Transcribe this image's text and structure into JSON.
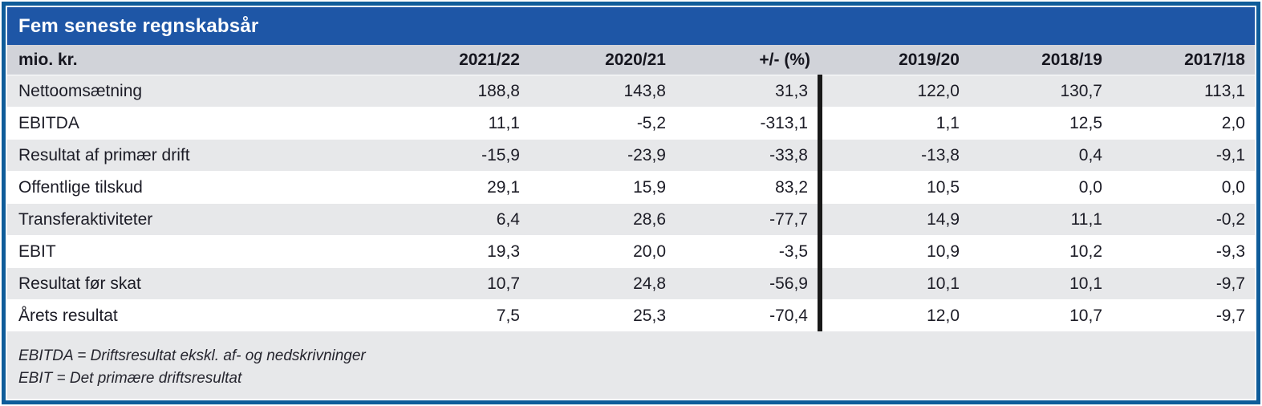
{
  "colors": {
    "title_bg": "#1e56a6",
    "frame_border": "#0f5c9a",
    "header_bg": "#d1d3d9",
    "row_alt_bg": "#e7e8ea",
    "divider": "#191919",
    "text": "#1c1c26"
  },
  "table": {
    "title": "Fem seneste regnskabsår",
    "unit_label": "mio. kr.",
    "columns": [
      "2021/22",
      "2020/21",
      "+/- (%)",
      "2019/20",
      "2018/19",
      "2017/18"
    ],
    "rows": [
      {
        "label": "Nettoomsætning",
        "values": [
          "188,8",
          "143,8",
          "31,3",
          "122,0",
          "130,7",
          "113,1"
        ]
      },
      {
        "label": "EBITDA",
        "values": [
          "11,1",
          "-5,2",
          "-313,1",
          "1,1",
          "12,5",
          "2,0"
        ]
      },
      {
        "label": "Resultat af primær drift",
        "values": [
          "-15,9",
          "-23,9",
          "-33,8",
          "-13,8",
          "0,4",
          "-9,1"
        ]
      },
      {
        "label": "Offentlige tilskud",
        "values": [
          "29,1",
          "15,9",
          "83,2",
          "10,5",
          "0,0",
          "0,0"
        ]
      },
      {
        "label": "Transferaktiviteter",
        "values": [
          "6,4",
          "28,6",
          "-77,7",
          "14,9",
          "11,1",
          "-0,2"
        ]
      },
      {
        "label": "EBIT",
        "values": [
          "19,3",
          "20,0",
          "-3,5",
          "10,9",
          "10,2",
          "-9,3"
        ]
      },
      {
        "label": "Resultat før skat",
        "values": [
          "10,7",
          "24,8",
          "-56,9",
          "10,1",
          "10,1",
          "-9,7"
        ]
      },
      {
        "label": "Årets resultat",
        "values": [
          "7,5",
          "25,3",
          "-70,4",
          "12,0",
          "10,7",
          "-9,7"
        ]
      }
    ],
    "footnotes": [
      "EBITDA = Driftsresultat ekskl. af- og nedskrivninger",
      "EBIT = Det primære driftsresultat"
    ]
  },
  "chart_data": {
    "type": "table",
    "title": "Fem seneste regnskabsår",
    "unit": "mio. kr.",
    "categories": [
      "2021/22",
      "2020/21",
      "+/- (%)",
      "2019/20",
      "2018/19",
      "2017/18"
    ],
    "series": [
      {
        "name": "Nettoomsætning",
        "values": [
          188.8,
          143.8,
          31.3,
          122.0,
          130.7,
          113.1
        ]
      },
      {
        "name": "EBITDA",
        "values": [
          11.1,
          -5.2,
          -313.1,
          1.1,
          12.5,
          2.0
        ]
      },
      {
        "name": "Resultat af primær drift",
        "values": [
          -15.9,
          -23.9,
          -33.8,
          -13.8,
          0.4,
          -9.1
        ]
      },
      {
        "name": "Offentlige tilskud",
        "values": [
          29.1,
          15.9,
          83.2,
          10.5,
          0.0,
          0.0
        ]
      },
      {
        "name": "Transferaktiviteter",
        "values": [
          6.4,
          28.6,
          -77.7,
          14.9,
          11.1,
          -0.2
        ]
      },
      {
        "name": "EBIT",
        "values": [
          19.3,
          20.0,
          -3.5,
          10.9,
          10.2,
          -9.3
        ]
      },
      {
        "name": "Resultat før skat",
        "values": [
          10.7,
          24.8,
          -56.9,
          10.1,
          10.1,
          -9.7
        ]
      },
      {
        "name": "Årets resultat",
        "values": [
          7.5,
          25.3,
          -70.4,
          12.0,
          10.7,
          -9.7
        ]
      }
    ]
  }
}
